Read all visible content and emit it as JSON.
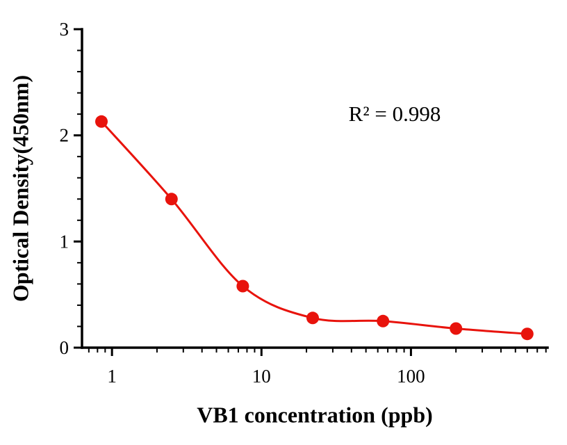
{
  "chart_data": {
    "type": "scatter",
    "title": "",
    "xlabel": "VB1 concentration (ppb)",
    "ylabel": "Optical Density(450nm)",
    "annotation": "R² = 0.998",
    "x_scale": "log",
    "x": [
      0.85,
      2.5,
      7.5,
      22,
      65,
      200,
      600
    ],
    "y": [
      2.13,
      1.4,
      0.58,
      0.28,
      0.25,
      0.18,
      0.13
    ],
    "xlim": [
      0.63,
      820
    ],
    "ylim": [
      0,
      3
    ],
    "x_major_ticks": [
      1,
      10,
      100
    ],
    "y_major_ticks": [
      0,
      1,
      2,
      3
    ],
    "y_minor_step": 0.2,
    "grid": false,
    "legend": "none",
    "marker_color": "#e8130c",
    "line_color": "#e8130c",
    "axis_color": "#000000",
    "marker_radius": 9
  }
}
